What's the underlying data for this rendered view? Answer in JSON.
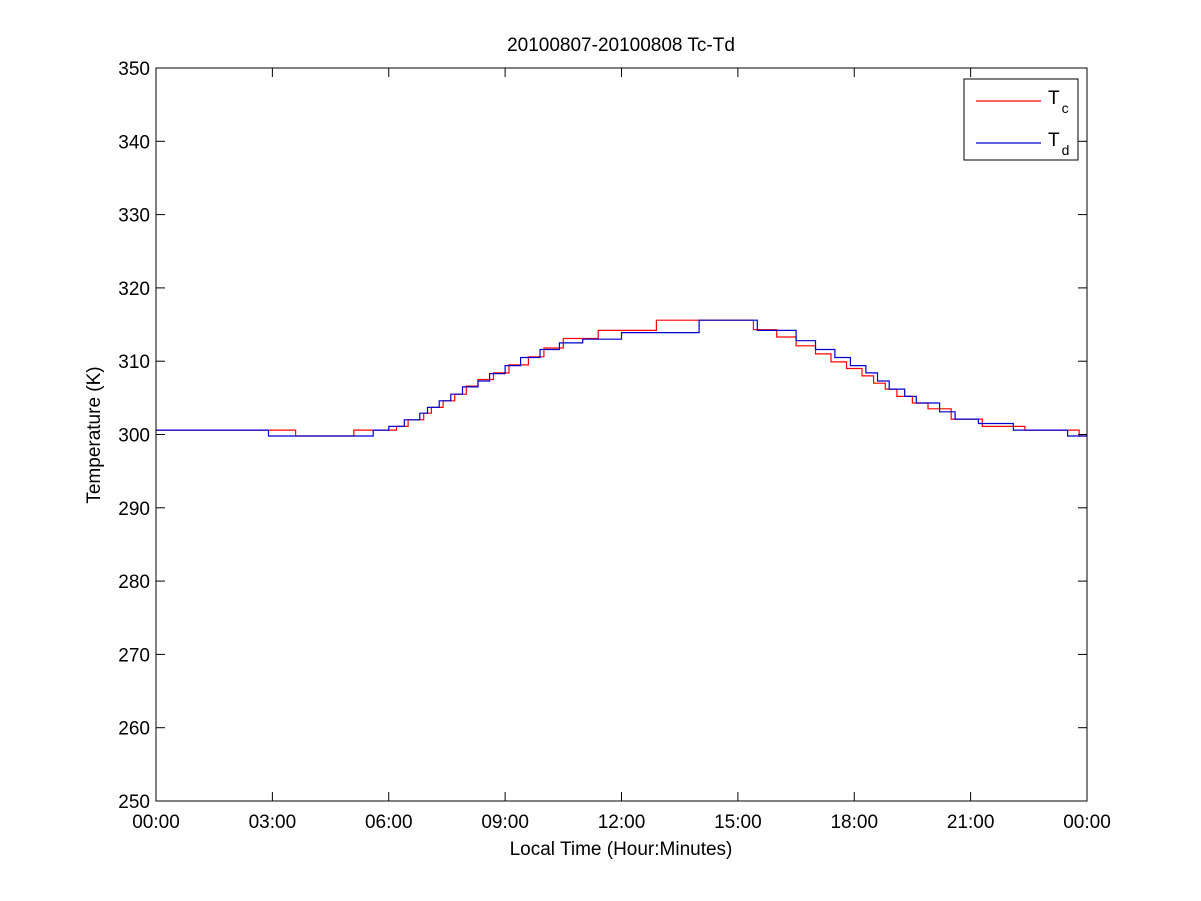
{
  "chart_data": {
    "type": "line",
    "title": "20100807-20100808 Tc-Td",
    "xlabel": "Local Time (Hour:Minutes)",
    "ylabel": "Temperature (K)",
    "xlim": [
      0,
      24
    ],
    "ylim": [
      250,
      350
    ],
    "x_unit": "hours",
    "x_ticks": [
      0,
      3,
      6,
      9,
      12,
      15,
      18,
      21,
      24
    ],
    "x_tick_labels": [
      "00:00",
      "03:00",
      "06:00",
      "09:00",
      "12:00",
      "15:00",
      "18:00",
      "21:00",
      "00:00"
    ],
    "y_ticks": [
      250,
      260,
      270,
      280,
      290,
      300,
      310,
      320,
      330,
      340,
      350
    ],
    "y_tick_labels": [
      "250",
      "260",
      "270",
      "280",
      "290",
      "300",
      "310",
      "320",
      "330",
      "340",
      "350"
    ],
    "grid": false,
    "legend_position": "top-right",
    "series": [
      {
        "name": "Tc",
        "name_main": "T",
        "name_sub": "c",
        "color": "#ff0000",
        "step": true,
        "x": [
          0,
          3.6,
          5.1,
          5.5,
          6.2,
          6.5,
          6.9,
          7.1,
          7.4,
          7.7,
          8.0,
          8.3,
          8.7,
          9.1,
          9.6,
          10.0,
          10.5,
          11.4,
          12.9,
          15.4,
          16.0,
          16.5,
          17.0,
          17.4,
          17.8,
          18.2,
          18.5,
          18.8,
          19.1,
          19.5,
          19.9,
          20.5,
          21.3,
          22.4,
          23.8,
          24.0
        ],
        "y": [
          300.6,
          299.8,
          300.6,
          300.6,
          301.1,
          302.0,
          302.9,
          303.7,
          304.6,
          305.5,
          306.6,
          307.5,
          308.4,
          309.5,
          310.6,
          311.8,
          313.1,
          314.2,
          315.6,
          314.3,
          313.3,
          312.1,
          311.0,
          309.9,
          309.0,
          308.0,
          307.0,
          306.2,
          305.2,
          304.3,
          303.5,
          302.1,
          301.1,
          300.6,
          299.8,
          299.8
        ]
      },
      {
        "name": "Td",
        "name_main": "T",
        "name_sub": "d",
        "color": "#0000cc",
        "step": true,
        "x": [
          0,
          2.9,
          5.6,
          6.0,
          6.4,
          6.8,
          7.0,
          7.3,
          7.6,
          7.9,
          8.3,
          8.6,
          9.0,
          9.4,
          9.9,
          10.4,
          11.0,
          12.0,
          14.0,
          15.5,
          16.5,
          17.0,
          17.5,
          17.9,
          18.3,
          18.6,
          18.9,
          19.3,
          19.6,
          20.2,
          20.6,
          21.2,
          22.1,
          23.5,
          24.0
        ],
        "y": [
          300.6,
          299.8,
          300.6,
          301.1,
          302.0,
          302.9,
          303.7,
          304.6,
          305.5,
          306.5,
          307.3,
          308.3,
          309.4,
          310.5,
          311.6,
          312.5,
          313.0,
          313.9,
          315.6,
          314.2,
          312.8,
          311.6,
          310.5,
          309.4,
          308.4,
          307.3,
          306.2,
          305.2,
          304.3,
          303.1,
          302.1,
          301.5,
          300.6,
          299.8,
          299.8
        ]
      }
    ]
  }
}
